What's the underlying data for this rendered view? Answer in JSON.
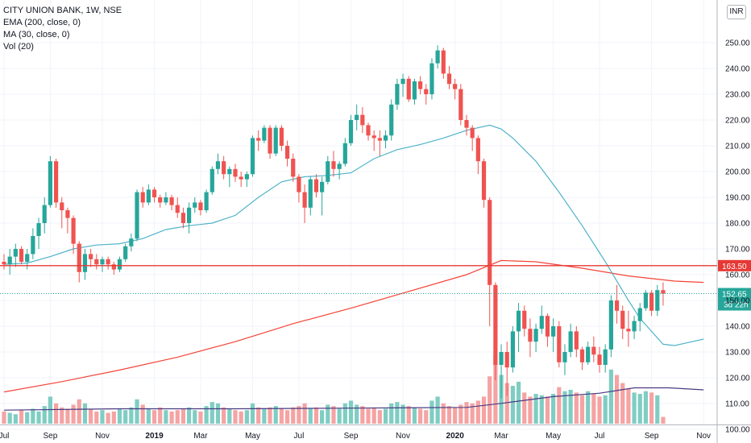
{
  "header": {
    "symbol_line": "CITY UNION BANK, 1W, NSE",
    "ema_label": "EMA (200, close, 0)",
    "ma_label": "MA (30, close, 0)",
    "vol_label": "Vol (20)"
  },
  "currency_button": "INR",
  "colors": {
    "up": "#26a69a",
    "down": "#ef5350",
    "vol_up": "#7fcdc3",
    "vol_down": "#f5a3a3",
    "ema": "#f44336",
    "ma": "#4fb3c9",
    "vol_ma": "#4a3b82",
    "hline": "#e53935",
    "price_tag": "#26a69a"
  },
  "chart_data": {
    "type": "candlestick",
    "timeframe": "1W",
    "y_axis_ticks": [
      "100.00",
      "110.00",
      "120.00",
      "130.00",
      "140.00",
      "150.00",
      "160.00",
      "170.00",
      "180.00",
      "190.00",
      "200.00",
      "210.00",
      "220.00",
      "230.00",
      "240.00",
      "250.00"
    ],
    "y_axis_range": [
      95,
      260
    ],
    "x_axis_labels": [
      {
        "label": "Jul",
        "week": 0,
        "bold": false
      },
      {
        "label": "Sep",
        "week": 8,
        "bold": false
      },
      {
        "label": "Nov",
        "week": 17,
        "bold": false
      },
      {
        "label": "2019",
        "week": 26,
        "bold": true
      },
      {
        "label": "Mar",
        "week": 34,
        "bold": false
      },
      {
        "label": "May",
        "week": 43,
        "bold": false
      },
      {
        "label": "Jul",
        "week": 51,
        "bold": false
      },
      {
        "label": "Sep",
        "week": 60,
        "bold": false
      },
      {
        "label": "Nov",
        "week": 69,
        "bold": false
      },
      {
        "label": "2020",
        "week": 78,
        "bold": true
      },
      {
        "label": "Mar",
        "week": 86,
        "bold": false
      },
      {
        "label": "May",
        "week": 95,
        "bold": false
      },
      {
        "label": "Jul",
        "week": 103,
        "bold": false
      },
      {
        "label": "Sep",
        "week": 112,
        "bold": false
      },
      {
        "label": "Nov",
        "week": 121,
        "bold": false
      }
    ],
    "candles": [
      [
        165,
        168,
        162,
        164
      ],
      [
        164,
        170,
        160,
        167
      ],
      [
        167,
        172,
        163,
        170
      ],
      [
        170,
        171,
        164,
        165
      ],
      [
        165,
        170,
        162,
        168
      ],
      [
        168,
        178,
        166,
        175
      ],
      [
        175,
        182,
        170,
        180
      ],
      [
        180,
        190,
        176,
        187
      ],
      [
        187,
        206,
        186,
        204
      ],
      [
        204,
        205,
        186,
        188
      ],
      [
        188,
        190,
        178,
        185
      ],
      [
        185,
        186,
        176,
        182
      ],
      [
        182,
        183,
        168,
        172
      ],
      [
        172,
        173,
        157,
        161
      ],
      [
        161,
        170,
        158,
        168
      ],
      [
        168,
        170,
        163,
        166
      ],
      [
        166,
        168,
        162,
        164
      ],
      [
        164,
        167,
        161,
        166
      ],
      [
        166,
        167,
        162,
        164
      ],
      [
        164,
        165,
        160,
        162
      ],
      [
        162,
        167,
        161,
        166
      ],
      [
        166,
        172,
        165,
        171
      ],
      [
        171,
        176,
        169,
        174
      ],
      [
        174,
        193,
        173,
        192
      ],
      [
        192,
        194,
        186,
        188
      ],
      [
        188,
        195,
        187,
        193
      ],
      [
        193,
        194,
        188,
        190
      ],
      [
        190,
        191,
        186,
        188
      ],
      [
        188,
        192,
        187,
        190
      ],
      [
        190,
        191,
        185,
        187
      ],
      [
        187,
        190,
        182,
        184
      ],
      [
        184,
        186,
        178,
        180
      ],
      [
        180,
        188,
        176,
        186
      ],
      [
        186,
        190,
        184,
        188
      ],
      [
        188,
        189,
        183,
        185
      ],
      [
        185,
        193,
        184,
        192
      ],
      [
        192,
        202,
        191,
        201
      ],
      [
        201,
        207,
        199,
        204
      ],
      [
        204,
        206,
        197,
        199
      ],
      [
        199,
        202,
        194,
        201
      ],
      [
        201,
        203,
        196,
        198
      ],
      [
        198,
        200,
        194,
        197
      ],
      [
        197,
        200,
        194,
        199
      ],
      [
        199,
        214,
        198,
        213
      ],
      [
        213,
        216,
        208,
        212
      ],
      [
        212,
        218,
        211,
        217
      ],
      [
        217,
        218,
        205,
        207
      ],
      [
        207,
        218,
        206,
        217
      ],
      [
        217,
        218,
        208,
        210
      ],
      [
        210,
        212,
        202,
        205
      ],
      [
        205,
        207,
        196,
        198
      ],
      [
        198,
        199,
        188,
        192
      ],
      [
        192,
        195,
        180,
        186
      ],
      [
        186,
        198,
        183,
        197
      ],
      [
        197,
        199,
        190,
        192
      ],
      [
        192,
        198,
        183,
        196
      ],
      [
        196,
        206,
        195,
        204
      ],
      [
        204,
        208,
        198,
        201
      ],
      [
        201,
        204,
        197,
        203
      ],
      [
        203,
        213,
        202,
        211
      ],
      [
        211,
        222,
        210,
        220
      ],
      [
        220,
        226,
        216,
        222
      ],
      [
        222,
        225,
        215,
        218
      ],
      [
        218,
        219,
        212,
        214
      ],
      [
        214,
        216,
        208,
        213
      ],
      [
        213,
        216,
        206,
        212
      ],
      [
        212,
        216,
        209,
        214
      ],
      [
        214,
        228,
        212,
        226
      ],
      [
        226,
        236,
        224,
        234
      ],
      [
        234,
        238,
        229,
        236
      ],
      [
        236,
        237,
        227,
        228
      ],
      [
        228,
        236,
        226,
        235
      ],
      [
        235,
        237,
        230,
        232
      ],
      [
        232,
        234,
        226,
        230
      ],
      [
        230,
        244,
        228,
        242
      ],
      [
        242,
        249,
        240,
        247
      ],
      [
        247,
        248,
        236,
        238
      ],
      [
        238,
        241,
        232,
        234
      ],
      [
        234,
        236,
        228,
        232
      ],
      [
        232,
        234,
        218,
        220
      ],
      [
        220,
        222,
        214,
        217
      ],
      [
        217,
        218,
        208,
        213
      ],
      [
        213,
        214,
        199,
        204
      ],
      [
        204,
        205,
        186,
        189
      ],
      [
        189,
        190,
        140,
        156
      ],
      [
        156,
        157,
        119,
        125
      ],
      [
        125,
        133,
        112,
        130
      ],
      [
        130,
        134,
        113,
        124
      ],
      [
        124,
        140,
        122,
        138
      ],
      [
        138,
        149,
        130,
        146
      ],
      [
        146,
        148,
        136,
        139
      ],
      [
        139,
        143,
        128,
        134
      ],
      [
        134,
        141,
        130,
        139
      ],
      [
        139,
        148,
        137,
        144
      ],
      [
        144,
        145,
        132,
        136
      ],
      [
        136,
        143,
        130,
        140
      ],
      [
        140,
        142,
        124,
        126
      ],
      [
        126,
        133,
        121,
        130
      ],
      [
        130,
        141,
        128,
        138
      ],
      [
        138,
        140,
        128,
        131
      ],
      [
        131,
        132,
        123,
        126
      ],
      [
        126,
        134,
        125,
        132
      ],
      [
        132,
        136,
        126,
        129
      ],
      [
        129,
        132,
        122,
        125
      ],
      [
        125,
        133,
        122,
        131
      ],
      [
        131,
        152,
        128,
        150
      ],
      [
        150,
        156,
        141,
        146
      ],
      [
        146,
        148,
        135,
        139
      ],
      [
        139,
        146,
        132,
        138
      ],
      [
        138,
        144,
        135,
        142
      ],
      [
        142,
        149,
        138,
        147
      ],
      [
        147,
        154,
        146,
        153
      ],
      [
        153,
        154,
        144,
        146
      ],
      [
        146,
        156,
        144,
        154
      ],
      [
        154,
        157,
        148,
        152.65
      ]
    ],
    "volume": [
      0.18,
      0.16,
      0.14,
      0.2,
      0.17,
      0.22,
      0.18,
      0.26,
      0.4,
      0.3,
      0.24,
      0.22,
      0.28,
      0.36,
      0.3,
      0.22,
      0.18,
      0.2,
      0.16,
      0.18,
      0.22,
      0.2,
      0.24,
      0.36,
      0.28,
      0.22,
      0.2,
      0.24,
      0.2,
      0.18,
      0.2,
      0.22,
      0.24,
      0.2,
      0.18,
      0.26,
      0.32,
      0.3,
      0.24,
      0.22,
      0.2,
      0.18,
      0.2,
      0.3,
      0.24,
      0.22,
      0.24,
      0.26,
      0.22,
      0.2,
      0.24,
      0.26,
      0.3,
      0.22,
      0.24,
      0.2,
      0.28,
      0.26,
      0.22,
      0.3,
      0.34,
      0.28,
      0.26,
      0.22,
      0.24,
      0.2,
      0.22,
      0.3,
      0.32,
      0.28,
      0.26,
      0.24,
      0.22,
      0.2,
      0.34,
      0.4,
      0.3,
      0.26,
      0.24,
      0.28,
      0.32,
      0.3,
      0.34,
      0.4,
      0.7,
      1.0,
      0.72,
      0.6,
      0.56,
      0.62,
      0.46,
      0.4,
      0.44,
      0.42,
      0.4,
      0.44,
      0.54,
      0.48,
      0.5,
      0.46,
      0.42,
      0.48,
      0.44,
      0.4,
      0.42,
      0.8,
      0.72,
      0.6,
      0.52,
      0.46,
      0.44,
      0.48,
      0.46,
      0.42,
      0.1
    ],
    "ema_200": [
      {
        "week": 0,
        "value": 114.5
      },
      {
        "week": 10,
        "value": 118.5
      },
      {
        "week": 20,
        "value": 123
      },
      {
        "week": 30,
        "value": 128
      },
      {
        "week": 40,
        "value": 134
      },
      {
        "week": 50,
        "value": 141
      },
      {
        "week": 60,
        "value": 147
      },
      {
        "week": 70,
        "value": 153.5
      },
      {
        "week": 80,
        "value": 160
      },
      {
        "week": 86,
        "value": 165.5
      },
      {
        "week": 92,
        "value": 165
      },
      {
        "week": 100,
        "value": 162.5
      },
      {
        "week": 108,
        "value": 159.5
      },
      {
        "week": 116,
        "value": 157.5
      },
      {
        "week": 121,
        "value": 157
      }
    ],
    "ma_30": [
      {
        "week": 0,
        "value": 164
      },
      {
        "week": 4,
        "value": 164.5
      },
      {
        "week": 8,
        "value": 167
      },
      {
        "week": 12,
        "value": 170
      },
      {
        "week": 16,
        "value": 171.5
      },
      {
        "week": 20,
        "value": 172
      },
      {
        "week": 24,
        "value": 174
      },
      {
        "week": 28,
        "value": 177.5
      },
      {
        "week": 32,
        "value": 179
      },
      {
        "week": 36,
        "value": 180
      },
      {
        "week": 40,
        "value": 183
      },
      {
        "week": 44,
        "value": 190
      },
      {
        "week": 48,
        "value": 196
      },
      {
        "week": 52,
        "value": 198
      },
      {
        "week": 56,
        "value": 198.5
      },
      {
        "week": 60,
        "value": 199.5
      },
      {
        "week": 64,
        "value": 205
      },
      {
        "week": 68,
        "value": 208.5
      },
      {
        "week": 72,
        "value": 210.5
      },
      {
        "week": 76,
        "value": 213
      },
      {
        "week": 80,
        "value": 216
      },
      {
        "week": 84,
        "value": 218
      },
      {
        "week": 86,
        "value": 216.5
      },
      {
        "week": 88,
        "value": 213
      },
      {
        "week": 92,
        "value": 204
      },
      {
        "week": 96,
        "value": 192
      },
      {
        "week": 100,
        "value": 179
      },
      {
        "week": 104,
        "value": 165
      },
      {
        "week": 108,
        "value": 150
      },
      {
        "week": 110,
        "value": 143
      },
      {
        "week": 112,
        "value": 138
      },
      {
        "week": 114,
        "value": 133
      },
      {
        "week": 116,
        "value": 132.5
      },
      {
        "week": 118,
        "value": 133.5
      },
      {
        "week": 121,
        "value": 135
      }
    ],
    "vol_ma": [
      {
        "week": 0,
        "value": 0.2
      },
      {
        "week": 20,
        "value": 0.22
      },
      {
        "week": 40,
        "value": 0.22
      },
      {
        "week": 60,
        "value": 0.23
      },
      {
        "week": 80,
        "value": 0.24
      },
      {
        "week": 86,
        "value": 0.3
      },
      {
        "week": 95,
        "value": 0.4
      },
      {
        "week": 103,
        "value": 0.45
      },
      {
        "week": 109,
        "value": 0.53
      },
      {
        "week": 115,
        "value": 0.53
      },
      {
        "week": 121,
        "value": 0.5
      }
    ],
    "horizontal_line": {
      "value": 163.5,
      "label": "163.50"
    },
    "last_price": {
      "value": 152.65,
      "label": "152.65",
      "countdown": "3d 22h"
    }
  }
}
